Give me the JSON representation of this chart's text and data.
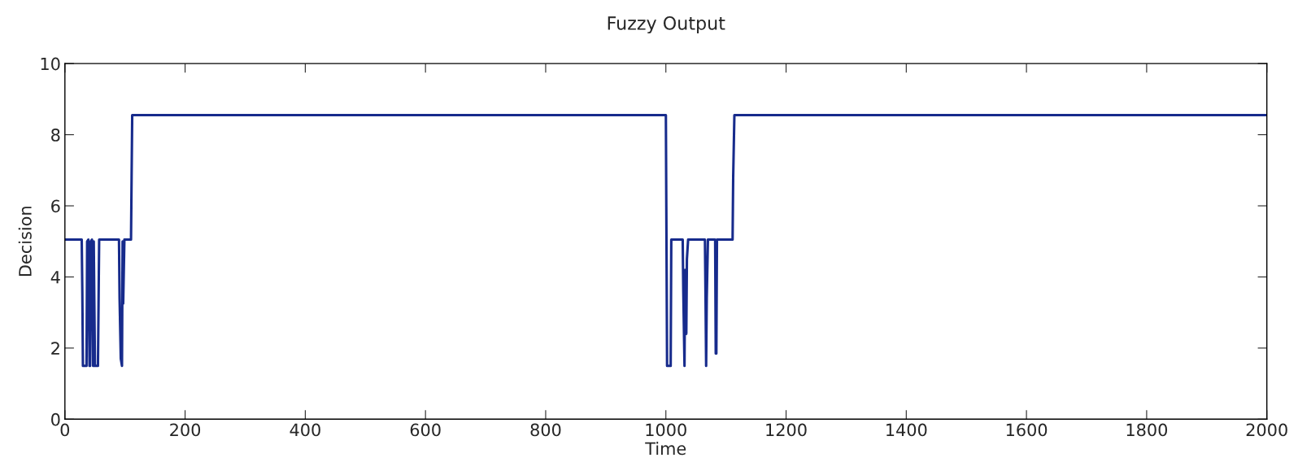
{
  "chart_data": {
    "type": "line",
    "title": "Fuzzy Output",
    "xlabel": "Time",
    "ylabel": "Decision",
    "xlim": [
      0,
      2000
    ],
    "xticks": [
      0,
      200,
      400,
      600,
      800,
      1000,
      1200,
      1400,
      1600,
      1800,
      2000
    ],
    "ylim": [
      0,
      10
    ],
    "yticks": [
      0,
      2,
      4,
      6,
      8,
      10
    ],
    "grid": false,
    "marker": "none",
    "line_style": "solid",
    "series": [
      {
        "color": "#172b8c",
        "x": [
          0,
          28,
          29,
          30,
          36,
          37,
          39,
          40,
          41,
          42,
          43,
          45,
          46,
          47,
          48,
          49,
          50,
          55,
          56,
          57,
          90,
          91,
          93,
          95,
          96,
          97,
          99,
          110,
          111,
          112,
          1000,
          1001,
          1002,
          1008,
          1009,
          1010,
          1028,
          1029,
          1031,
          1032,
          1034,
          1035,
          1037,
          1065,
          1066,
          1067,
          1068,
          1070,
          1082,
          1083,
          1084,
          1085,
          1111,
          1112,
          1114,
          2000
        ],
        "values": [
          5.05,
          5.05,
          3.6,
          1.5,
          1.5,
          5.0,
          5.05,
          3.25,
          1.5,
          1.5,
          5.0,
          5.05,
          3.25,
          1.5,
          5.0,
          3.25,
          1.5,
          1.5,
          3.25,
          5.05,
          5.05,
          3.4,
          1.7,
          1.5,
          5.0,
          3.25,
          5.05,
          5.05,
          6.8,
          8.55,
          8.55,
          5.05,
          1.5,
          1.5,
          5.05,
          5.05,
          5.05,
          3.6,
          1.5,
          4.2,
          2.4,
          4.5,
          5.05,
          5.05,
          3.4,
          1.5,
          3.4,
          5.05,
          5.05,
          1.85,
          1.85,
          5.05,
          5.05,
          6.8,
          8.55,
          8.55
        ]
      }
    ]
  }
}
